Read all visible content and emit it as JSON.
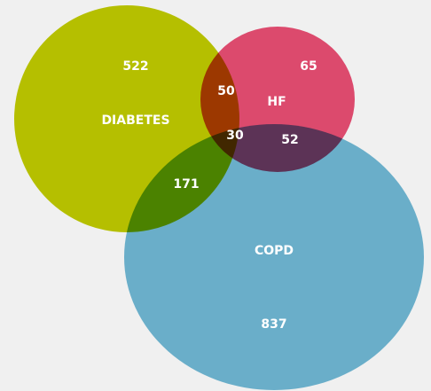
{
  "chart_data": {
    "type": "venn",
    "sets": [
      {
        "name": "DIABETES",
        "color": "#b5bf00"
      },
      {
        "name": "HF",
        "color": "#dc4a6d"
      },
      {
        "name": "COPD",
        "color": "#6aaec9"
      }
    ],
    "values": [
      522,
      65,
      837,
      50,
      171,
      52,
      30
    ]
  }
}
